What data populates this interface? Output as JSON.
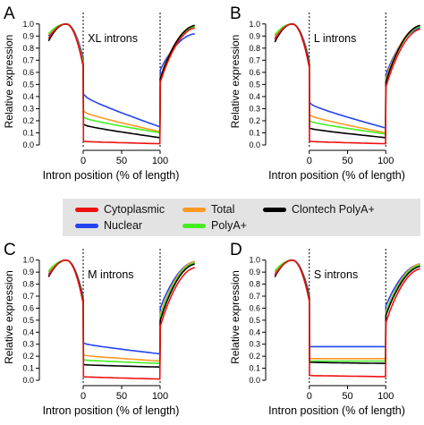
{
  "legend": {
    "items": [
      {
        "label": "Cytoplasmic",
        "color": "#ee1111"
      },
      {
        "label": "Total",
        "color": "#ff9922"
      },
      {
        "label": "Clontech PolyA+",
        "color": "#000000"
      },
      {
        "label": "Nuclear",
        "color": "#2244ee"
      },
      {
        "label": "PolyA+",
        "color": "#44ee22"
      }
    ]
  },
  "chart_data": [
    {
      "type": "line",
      "panel_letter": "A",
      "title": "XL introns",
      "xlabel": "Intron position (% of length)",
      "ylabel": "Relative expression",
      "xlim": [
        -50,
        150
      ],
      "ylim": [
        0,
        1.05
      ],
      "xticks": [
        "0",
        "50",
        "100"
      ],
      "yticks": [
        "0.0",
        "0.1",
        "0.2",
        "0.3",
        "0.4",
        "0.5",
        "0.6",
        "0.7",
        "0.8",
        "0.9",
        "1.0"
      ],
      "vlines": [
        0,
        100
      ],
      "series": [
        {
          "name": "Nuclear",
          "color": "#2244ee",
          "left_start": 0.9,
          "junction": 0.72,
          "in_start": 0.42,
          "in_end": 0.15,
          "right_start": 0.62,
          "right_end": 0.92
        },
        {
          "name": "Total",
          "color": "#ff9922",
          "left_start": 0.91,
          "junction": 0.69,
          "in_start": 0.28,
          "in_end": 0.11,
          "right_start": 0.56,
          "right_end": 0.99
        },
        {
          "name": "PolyA+",
          "color": "#44ee22",
          "left_start": 0.92,
          "junction": 0.68,
          "in_start": 0.23,
          "in_end": 0.1,
          "right_start": 0.55,
          "right_end": 0.98
        },
        {
          "name": "Clontech PolyA+",
          "color": "#000000",
          "left_start": 0.86,
          "junction": 0.66,
          "in_start": 0.17,
          "in_end": 0.06,
          "right_start": 0.55,
          "right_end": 0.99
        },
        {
          "name": "Cytoplasmic",
          "color": "#ee1111",
          "left_start": 0.88,
          "junction": 0.65,
          "in_start": 0.03,
          "in_end": 0.01,
          "right_start": 0.52,
          "right_end": 0.97
        }
      ]
    },
    {
      "type": "line",
      "panel_letter": "B",
      "title": "L introns",
      "xlabel": "Intron position (% of length)",
      "ylabel": "Relative expression",
      "xlim": [
        -50,
        150
      ],
      "ylim": [
        0,
        1.05
      ],
      "xticks": [
        "0",
        "50",
        "100"
      ],
      "yticks": [
        "0.0",
        "0.1",
        "0.2",
        "0.3",
        "0.4",
        "0.5",
        "0.6",
        "0.7",
        "0.8",
        "0.9",
        "1.0"
      ],
      "vlines": [
        0,
        100
      ],
      "series": [
        {
          "name": "Nuclear",
          "color": "#2244ee",
          "left_start": 0.88,
          "junction": 0.7,
          "in_start": 0.35,
          "in_end": 0.14,
          "right_start": 0.58,
          "right_end": 0.97
        },
        {
          "name": "Total",
          "color": "#ff9922",
          "left_start": 0.9,
          "junction": 0.68,
          "in_start": 0.25,
          "in_end": 0.1,
          "right_start": 0.55,
          "right_end": 0.99
        },
        {
          "name": "PolyA+",
          "color": "#44ee22",
          "left_start": 0.91,
          "junction": 0.67,
          "in_start": 0.2,
          "in_end": 0.09,
          "right_start": 0.53,
          "right_end": 0.98
        },
        {
          "name": "Clontech PolyA+",
          "color": "#000000",
          "left_start": 0.85,
          "junction": 0.66,
          "in_start": 0.14,
          "in_end": 0.06,
          "right_start": 0.52,
          "right_end": 0.99
        },
        {
          "name": "Cytoplasmic",
          "color": "#ee1111",
          "left_start": 0.87,
          "junction": 0.64,
          "in_start": 0.03,
          "in_end": 0.01,
          "right_start": 0.48,
          "right_end": 0.96
        }
      ]
    },
    {
      "type": "line",
      "panel_letter": "C",
      "title": "M introns",
      "xlabel": "Intron position (% of length)",
      "ylabel": "Relative expression",
      "xlim": [
        -50,
        150
      ],
      "ylim": [
        0,
        1.05
      ],
      "xticks": [
        "0",
        "50",
        "100"
      ],
      "yticks": [
        "0.0",
        "0.1",
        "0.2",
        "0.3",
        "0.4",
        "0.5",
        "0.6",
        "0.7",
        "0.8",
        "0.9",
        "1.0"
      ],
      "vlines": [
        0,
        100
      ],
      "series": [
        {
          "name": "Nuclear",
          "color": "#2244ee",
          "left_start": 0.88,
          "junction": 0.7,
          "in_start": 0.31,
          "in_end": 0.22,
          "right_start": 0.6,
          "right_end": 0.99
        },
        {
          "name": "Total",
          "color": "#ff9922",
          "left_start": 0.9,
          "junction": 0.68,
          "in_start": 0.21,
          "in_end": 0.16,
          "right_start": 0.55,
          "right_end": 0.99
        },
        {
          "name": "PolyA+",
          "color": "#44ee22",
          "left_start": 0.91,
          "junction": 0.67,
          "in_start": 0.17,
          "in_end": 0.14,
          "right_start": 0.53,
          "right_end": 0.98
        },
        {
          "name": "Clontech PolyA+",
          "color": "#000000",
          "left_start": 0.86,
          "junction": 0.66,
          "in_start": 0.13,
          "in_end": 0.11,
          "right_start": 0.5,
          "right_end": 0.97
        },
        {
          "name": "Cytoplasmic",
          "color": "#ee1111",
          "left_start": 0.87,
          "junction": 0.64,
          "in_start": 0.03,
          "in_end": 0.01,
          "right_start": 0.45,
          "right_end": 0.94
        }
      ]
    },
    {
      "type": "line",
      "panel_letter": "D",
      "title": "S introns",
      "xlabel": "Intron position (% of length)",
      "ylabel": "Relative expression",
      "xlim": [
        -50,
        150
      ],
      "ylim": [
        0,
        1.05
      ],
      "xticks": [
        "0",
        "50",
        "100"
      ],
      "yticks": [
        "0.0",
        "0.1",
        "0.2",
        "0.3",
        "0.4",
        "0.5",
        "0.6",
        "0.7",
        "0.8",
        "0.9",
        "1.0"
      ],
      "vlines": [
        0,
        100
      ],
      "series": [
        {
          "name": "Nuclear",
          "color": "#2244ee",
          "left_start": 0.88,
          "junction": 0.72,
          "in_start": 0.28,
          "in_end": 0.28,
          "right_start": 0.62,
          "right_end": 0.97
        },
        {
          "name": "Total",
          "color": "#ff9922",
          "left_start": 0.9,
          "junction": 0.7,
          "in_start": 0.18,
          "in_end": 0.18,
          "right_start": 0.57,
          "right_end": 0.97
        },
        {
          "name": "PolyA+",
          "color": "#44ee22",
          "left_start": 0.91,
          "junction": 0.69,
          "in_start": 0.16,
          "in_end": 0.16,
          "right_start": 0.56,
          "right_end": 0.96
        },
        {
          "name": "Clontech PolyA+",
          "color": "#000000",
          "left_start": 0.86,
          "junction": 0.68,
          "in_start": 0.15,
          "in_end": 0.14,
          "right_start": 0.54,
          "right_end": 0.95
        },
        {
          "name": "Cytoplasmic",
          "color": "#ee1111",
          "left_start": 0.87,
          "junction": 0.66,
          "in_start": 0.04,
          "in_end": 0.03,
          "right_start": 0.48,
          "right_end": 0.93
        }
      ]
    }
  ]
}
